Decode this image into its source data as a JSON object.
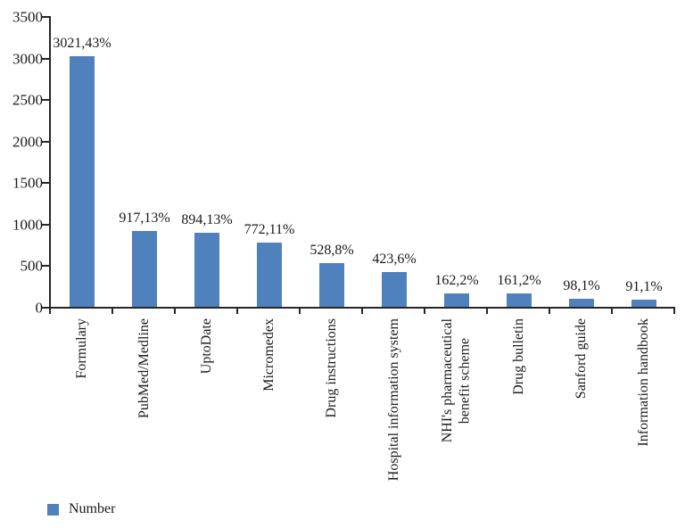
{
  "chart_data": {
    "type": "bar",
    "title": "",
    "xlabel": "",
    "ylabel": "",
    "categories": [
      "Formulary",
      "PubMed/Medline",
      "UptoDate",
      "Micromedex",
      "Drug instructions",
      "Hospital information system",
      "NHI's pharmaceutical\nbenefit scheme",
      "Drug bulletin",
      "Sanford guide",
      "Information handbook"
    ],
    "series": [
      {
        "name": "Number",
        "values": [
          3021,
          917,
          894,
          772,
          528,
          423,
          162,
          161,
          98,
          91
        ]
      }
    ],
    "percent_values": [
      43,
      13,
      13,
      11,
      8,
      6,
      2,
      2,
      1,
      1
    ],
    "bar_labels": [
      "3021,43%",
      "917,13%",
      "894,13%",
      "772,11%",
      "528,8%",
      "423,6%",
      "162,2%",
      "161,2%",
      "98,1%",
      "91,1%"
    ],
    "ylim": [
      0,
      3500
    ],
    "yticks": [
      0,
      500,
      1000,
      1500,
      2000,
      2500,
      3000,
      3500
    ],
    "grid": false,
    "legend": {
      "label": "Number",
      "position": "bottom-left"
    },
    "colors": {
      "bar": "#4f81bd",
      "axis": "#262626",
      "text": "#1a1a1a",
      "background": "#ffffff"
    }
  }
}
